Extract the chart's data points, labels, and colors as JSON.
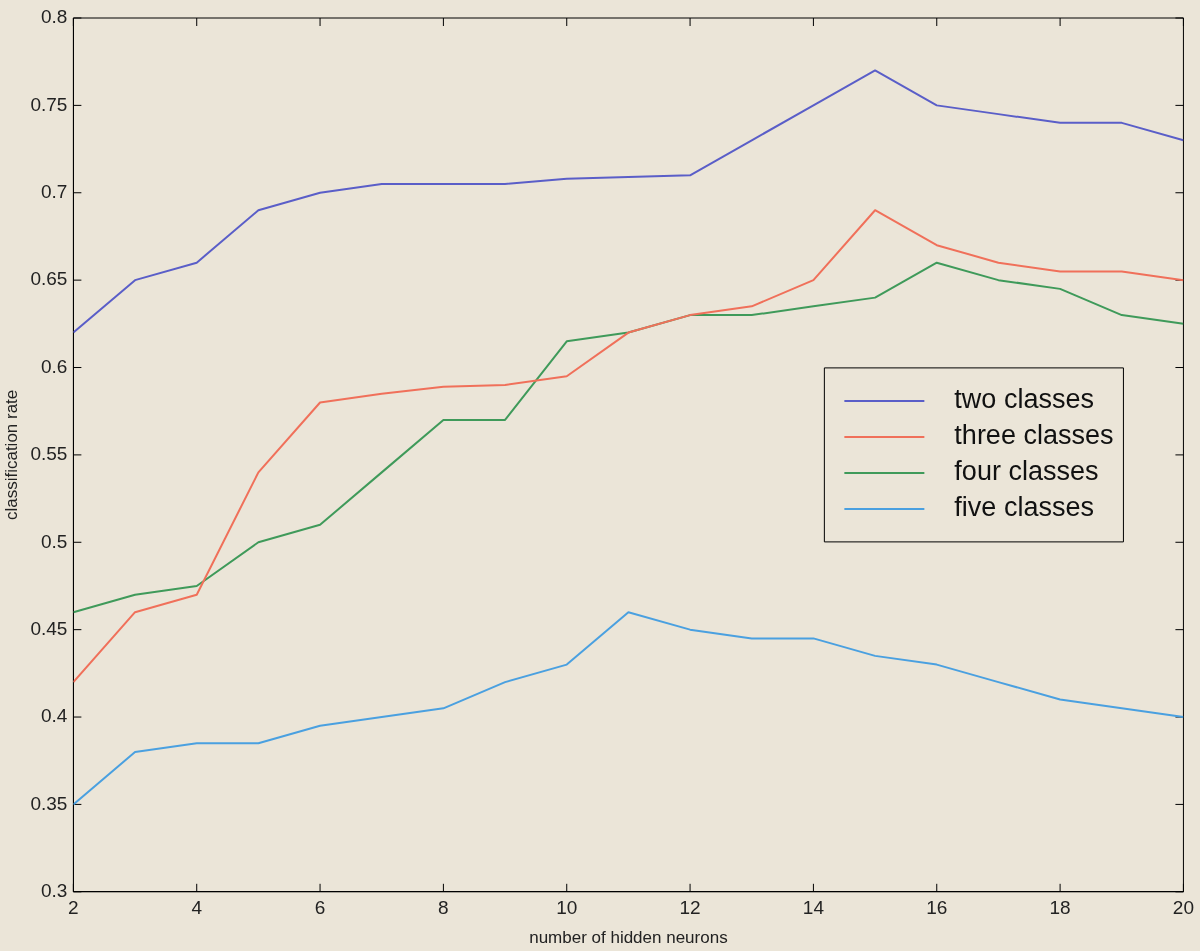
{
  "chart_data": {
    "type": "line",
    "xlabel": "number of hidden neurons",
    "ylabel": "classification rate",
    "x": [
      2,
      3,
      4,
      5,
      6,
      7,
      8,
      9,
      10,
      11,
      12,
      13,
      14,
      15,
      16,
      17,
      18,
      19,
      20
    ],
    "series": [
      {
        "name": "two classes",
        "color": "#5a5ec8",
        "values": [
          0.62,
          0.65,
          0.66,
          0.69,
          0.7,
          0.705,
          0.705,
          0.705,
          0.708,
          0.709,
          0.71,
          0.73,
          0.75,
          0.77,
          0.75,
          0.745,
          0.74,
          0.74,
          0.73
        ]
      },
      {
        "name": "three classes",
        "color": "#f0705a",
        "values": [
          0.42,
          0.46,
          0.47,
          0.54,
          0.58,
          0.585,
          0.589,
          0.59,
          0.595,
          0.62,
          0.63,
          0.635,
          0.65,
          0.69,
          0.67,
          0.66,
          0.655,
          0.655,
          0.65
        ]
      },
      {
        "name": "four classes",
        "color": "#3f9a5a",
        "values": [
          0.46,
          0.47,
          0.475,
          0.5,
          0.51,
          0.54,
          0.57,
          0.57,
          0.615,
          0.62,
          0.63,
          0.63,
          0.635,
          0.64,
          0.66,
          0.65,
          0.645,
          0.63,
          0.625
        ]
      },
      {
        "name": "five classes",
        "color": "#4aa0e0",
        "values": [
          0.35,
          0.38,
          0.385,
          0.385,
          0.395,
          0.4,
          0.405,
          0.42,
          0.43,
          0.46,
          0.45,
          0.445,
          0.445,
          0.435,
          0.43,
          0.42,
          0.41,
          0.405,
          0.4
        ]
      }
    ],
    "xlim": [
      2,
      20
    ],
    "xticks": [
      2,
      4,
      6,
      8,
      10,
      12,
      14,
      16,
      18,
      20
    ],
    "ylim": [
      0.3,
      0.8
    ],
    "yticks": [
      0.3,
      0.35,
      0.4,
      0.45,
      0.5,
      0.55,
      0.6,
      0.65,
      0.7,
      0.75,
      0.8
    ],
    "grid": false,
    "legend": "right",
    "marker": "none",
    "line_style": "solid"
  }
}
